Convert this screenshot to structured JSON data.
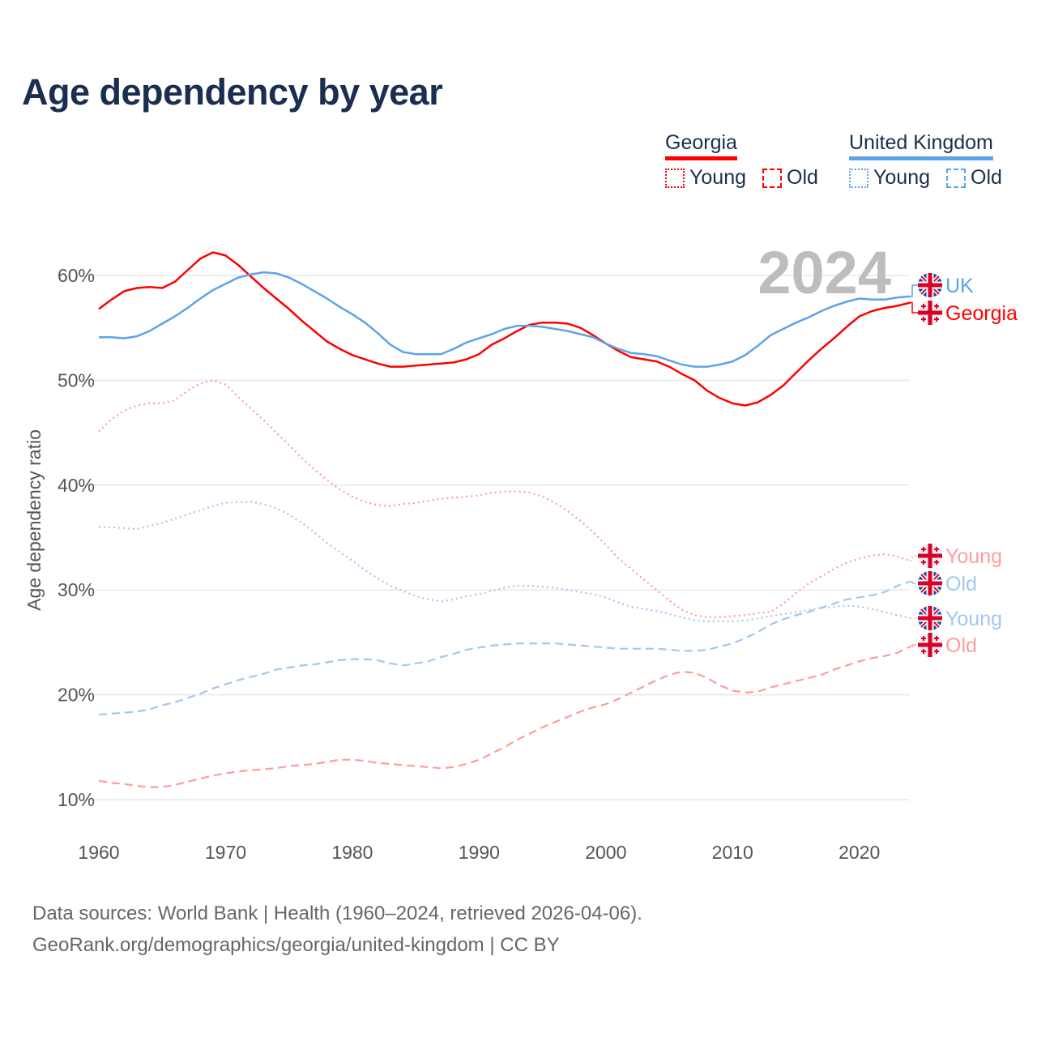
{
  "title": "Age dependency by year",
  "legend": {
    "georgia": {
      "label": "Georgia",
      "young": "Young",
      "old": "Old"
    },
    "uk": {
      "label": "United Kingdom",
      "young": "Young",
      "old": "Old"
    }
  },
  "year_display": "2024",
  "source_line1": "Data sources: World Bank | Health (1960–2024, retrieved 2026-04-06).",
  "source_line2": "GeoRank.org/demographics/georgia/united-kingdom | CC BY",
  "colors": {
    "georgia": "#ff0000",
    "uk": "#5da3e8",
    "georgia_light": "#ff9c9c",
    "uk_light": "#a3c7ef"
  },
  "chart_data": {
    "type": "line",
    "title": "Age dependency by year",
    "xlabel": "",
    "ylabel": "Age dependency ratio",
    "xlim": [
      1960,
      2024
    ],
    "ylim": [
      10,
      62
    ],
    "x_ticks": [
      "1960",
      "1970",
      "1980",
      "1990",
      "2000",
      "2010",
      "2020"
    ],
    "y_ticks": [
      "10%",
      "20%",
      "30%",
      "40%",
      "50%",
      "60%"
    ],
    "y_tick_values": [
      10,
      20,
      30,
      40,
      50,
      60
    ],
    "grid": true,
    "start_year": 1960,
    "series": [
      {
        "name": "Georgia",
        "end_label": "Georgia",
        "color": "#ff0000",
        "style": "solid",
        "flag": "georgia",
        "values": [
          56.8,
          57.7,
          58.5,
          58.8,
          58.9,
          58.8,
          59.4,
          60.5,
          61.6,
          62.2,
          61.9,
          61.0,
          59.9,
          58.8,
          57.8,
          56.8,
          55.7,
          54.7,
          53.7,
          53.0,
          52.4,
          52.0,
          51.6,
          51.3,
          51.3,
          51.4,
          51.5,
          51.6,
          51.7,
          52.0,
          52.5,
          53.4,
          54.0,
          54.7,
          55.3,
          55.5,
          55.5,
          55.4,
          55.0,
          54.3,
          53.5,
          52.8,
          52.2,
          52.0,
          51.8,
          51.3,
          50.6,
          50.0,
          49.0,
          48.3,
          47.8,
          47.6,
          47.9,
          48.6,
          49.5,
          50.7,
          51.9,
          53.0,
          54.0,
          55.1,
          56.1,
          56.6,
          56.9,
          57.1,
          57.4
        ]
      },
      {
        "name": "United Kingdom",
        "end_label": "UK",
        "color": "#5da3e8",
        "style": "solid",
        "flag": "uk",
        "values": [
          54.1,
          54.1,
          54.0,
          54.2,
          54.7,
          55.4,
          56.1,
          56.9,
          57.8,
          58.6,
          59.2,
          59.8,
          60.1,
          60.3,
          60.2,
          59.8,
          59.2,
          58.5,
          57.8,
          57.0,
          56.3,
          55.5,
          54.5,
          53.4,
          52.7,
          52.5,
          52.5,
          52.5,
          53.0,
          53.6,
          54.0,
          54.4,
          54.9,
          55.2,
          55.2,
          55.1,
          54.9,
          54.7,
          54.4,
          54.1,
          53.5,
          53.0,
          52.6,
          52.5,
          52.3,
          51.9,
          51.5,
          51.3,
          51.3,
          51.5,
          51.8,
          52.4,
          53.3,
          54.3,
          54.9,
          55.5,
          56.0,
          56.6,
          57.1,
          57.5,
          57.8,
          57.7,
          57.7,
          57.9,
          58.0
        ]
      },
      {
        "name": "Georgia Young",
        "end_label": "Young",
        "color": "#ff9c9c",
        "style": "dotted",
        "flag": "georgia",
        "values": [
          45.1,
          46.3,
          47.1,
          47.6,
          47.8,
          47.8,
          48.1,
          49.0,
          49.7,
          50.0,
          49.6,
          48.4,
          47.3,
          46.2,
          45.0,
          43.8,
          42.6,
          41.5,
          40.5,
          39.6,
          38.9,
          38.4,
          38.1,
          38.0,
          38.2,
          38.3,
          38.5,
          38.7,
          38.8,
          38.9,
          39.0,
          39.3,
          39.4,
          39.4,
          39.3,
          38.9,
          38.3,
          37.5,
          36.6,
          35.5,
          34.3,
          33.0,
          32.0,
          31.0,
          30.0,
          29.0,
          28.1,
          27.6,
          27.4,
          27.4,
          27.5,
          27.6,
          27.8,
          27.9,
          28.7,
          29.7,
          30.6,
          31.3,
          32.0,
          32.6,
          33.0,
          33.3,
          33.4,
          33.2,
          32.8
        ]
      },
      {
        "name": "United Kingdom Old",
        "end_label": "Old",
        "color": "#a3c7ef",
        "style": "dashed",
        "flag": "uk",
        "values": [
          18.1,
          18.2,
          18.3,
          18.4,
          18.6,
          19.0,
          19.3,
          19.7,
          20.1,
          20.6,
          21.0,
          21.4,
          21.7,
          22.0,
          22.4,
          22.6,
          22.8,
          22.9,
          23.1,
          23.3,
          23.4,
          23.4,
          23.3,
          23.0,
          22.8,
          23.0,
          23.2,
          23.6,
          23.9,
          24.3,
          24.5,
          24.7,
          24.8,
          24.9,
          24.9,
          24.9,
          24.9,
          24.8,
          24.7,
          24.6,
          24.5,
          24.4,
          24.4,
          24.4,
          24.4,
          24.3,
          24.2,
          24.2,
          24.3,
          24.6,
          24.9,
          25.4,
          26.0,
          26.7,
          27.2,
          27.6,
          27.9,
          28.3,
          28.7,
          29.1,
          29.3,
          29.5,
          29.8,
          30.4,
          30.8
        ]
      },
      {
        "name": "United Kingdom Young",
        "end_label": "Young",
        "color": "#a3c7ef",
        "style": "dotted",
        "flag": "uk",
        "values": [
          36.0,
          36.0,
          35.9,
          35.8,
          36.1,
          36.4,
          36.8,
          37.2,
          37.6,
          38.0,
          38.3,
          38.4,
          38.4,
          38.2,
          37.8,
          37.2,
          36.4,
          35.5,
          34.5,
          33.6,
          32.8,
          31.9,
          31.1,
          30.4,
          29.9,
          29.4,
          29.1,
          28.9,
          29.1,
          29.4,
          29.6,
          29.9,
          30.2,
          30.4,
          30.4,
          30.3,
          30.2,
          30.0,
          29.8,
          29.6,
          29.3,
          28.8,
          28.4,
          28.2,
          28.0,
          27.7,
          27.4,
          27.1,
          27.0,
          27.0,
          27.0,
          27.1,
          27.3,
          27.5,
          27.7,
          27.9,
          28.1,
          28.3,
          28.4,
          28.5,
          28.4,
          28.2,
          27.9,
          27.6,
          27.3
        ]
      },
      {
        "name": "Georgia Old",
        "end_label": "Old",
        "color": "#ff9c9c",
        "style": "dashed",
        "flag": "georgia",
        "values": [
          11.8,
          11.6,
          11.5,
          11.3,
          11.2,
          11.2,
          11.4,
          11.7,
          12.0,
          12.3,
          12.5,
          12.7,
          12.8,
          12.9,
          13.0,
          13.2,
          13.3,
          13.4,
          13.6,
          13.8,
          13.8,
          13.7,
          13.5,
          13.4,
          13.3,
          13.2,
          13.1,
          13.0,
          13.1,
          13.4,
          13.8,
          14.4,
          15.0,
          15.7,
          16.3,
          16.9,
          17.4,
          17.9,
          18.4,
          18.8,
          19.1,
          19.6,
          20.2,
          20.8,
          21.4,
          21.9,
          22.2,
          22.1,
          21.6,
          20.9,
          20.4,
          20.2,
          20.3,
          20.7,
          21.0,
          21.3,
          21.6,
          21.9,
          22.4,
          22.8,
          23.2,
          23.5,
          23.7,
          24.0,
          24.6
        ]
      }
    ]
  }
}
